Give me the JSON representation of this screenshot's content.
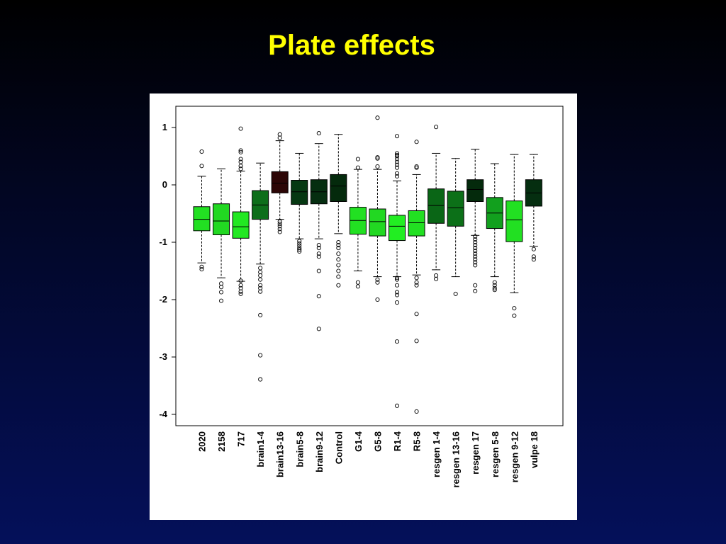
{
  "slide": {
    "title": "Plate effects"
  },
  "chart_data": {
    "type": "boxplot",
    "title": "",
    "xlabel": "",
    "ylabel": "",
    "ylim": [
      -4.2,
      1.35
    ],
    "yticks": [
      1,
      0,
      -1,
      -2,
      -3,
      -4
    ],
    "yticklabels": [
      "1",
      "0",
      "-1",
      "-2",
      "-3",
      "-4"
    ],
    "grid": false,
    "categories": [
      "2020",
      "2158",
      "717",
      "brain1-4",
      "brain13-16",
      "brain5-8",
      "brain9-12",
      "Control",
      "G1-4",
      "G5-8",
      "R1-4",
      "R5-8",
      "resgen 1-4",
      "resgen 13-16",
      "resgen 17",
      "resgen 5-8",
      "resgen 9-12",
      "vulpe 18"
    ],
    "boxes": [
      {
        "q1": -0.8,
        "median": -0.6,
        "q3": -0.38,
        "whisker_low": -1.36,
        "whisker_high": 0.15,
        "outliers": [
          0.58,
          0.33,
          -1.43,
          -1.47
        ],
        "color": "#22e022"
      },
      {
        "q1": -0.87,
        "median": -0.63,
        "q3": -0.33,
        "whisker_low": -1.62,
        "whisker_high": 0.28,
        "outliers": [
          -1.72,
          -1.78,
          -1.87,
          -2.02
        ],
        "color": "#22d822"
      },
      {
        "q1": -0.93,
        "median": -0.73,
        "q3": -0.47,
        "whisker_low": -1.68,
        "whisker_high": 0.24,
        "outliers": [
          0.98,
          0.6,
          0.57,
          0.45,
          0.4,
          0.33,
          0.28,
          -1.67,
          -1.75,
          -1.8,
          -1.86,
          -1.9
        ],
        "color": "#22e822"
      },
      {
        "q1": -0.6,
        "median": -0.35,
        "q3": -0.1,
        "whisker_low": -1.38,
        "whisker_high": 0.38,
        "outliers": [
          -1.45,
          -1.52,
          -1.58,
          -1.65,
          -1.75,
          -1.8,
          -1.86,
          -2.27,
          -2.97,
          -3.39
        ],
        "color": "#0d6e1a"
      },
      {
        "q1": -0.14,
        "median": 0.03,
        "q3": 0.23,
        "whisker_low": -0.6,
        "whisker_high": 0.77,
        "outliers": [
          0.88,
          0.82,
          -0.64,
          -0.68,
          -0.72,
          -0.77,
          -0.82
        ],
        "color": "#2c0606"
      },
      {
        "q1": -0.34,
        "median": -0.12,
        "q3": 0.08,
        "whisker_low": -0.94,
        "whisker_high": 0.55,
        "outliers": [
          -0.98,
          -1.02,
          -1.06,
          -1.1,
          -1.13,
          -1.16
        ],
        "color": "#063812"
      },
      {
        "q1": -0.33,
        "median": -0.12,
        "q3": 0.09,
        "whisker_low": -0.94,
        "whisker_high": 0.72,
        "outliers": [
          0.9,
          -1.05,
          -1.1,
          -1.2,
          -1.25,
          -1.5,
          -1.94,
          -2.51
        ],
        "color": "#052e10"
      },
      {
        "q1": -0.29,
        "median": -0.02,
        "q3": 0.18,
        "whisker_low": -0.85,
        "whisker_high": 0.88,
        "outliers": [
          -1.0,
          -1.05,
          -1.1,
          -1.2,
          -1.3,
          -1.4,
          -1.5,
          -1.6,
          -1.75
        ],
        "color": "#042a0c"
      },
      {
        "q1": -0.86,
        "median": -0.62,
        "q3": -0.39,
        "whisker_low": -1.5,
        "whisker_high": 0.27,
        "outliers": [
          0.45,
          0.3,
          -1.7,
          -1.77
        ],
        "color": "#22e022"
      },
      {
        "q1": -0.89,
        "median": -0.64,
        "q3": -0.42,
        "whisker_low": -1.6,
        "whisker_high": 0.27,
        "outliers": [
          1.17,
          0.48,
          0.46,
          0.32,
          -1.65,
          -1.7,
          -2.0
        ],
        "color": "#22d822"
      },
      {
        "q1": -0.97,
        "median": -0.72,
        "q3": -0.53,
        "whisker_low": -1.6,
        "whisker_high": 0.07,
        "outliers": [
          0.85,
          0.55,
          0.52,
          0.5,
          0.45,
          0.4,
          0.35,
          0.3,
          0.2,
          0.15,
          -1.62,
          -1.65,
          -1.75,
          -1.87,
          -1.92,
          -2.05,
          -2.73,
          -3.85
        ],
        "color": "#22ee22"
      },
      {
        "q1": -0.89,
        "median": -0.66,
        "q3": -0.45,
        "whisker_low": -1.57,
        "whisker_high": 0.18,
        "outliers": [
          0.75,
          0.32,
          0.3,
          -1.62,
          -1.7,
          -1.75,
          -2.25,
          -2.72,
          -3.95
        ],
        "color": "#22e022"
      },
      {
        "q1": -0.67,
        "median": -0.36,
        "q3": -0.07,
        "whisker_low": -1.48,
        "whisker_high": 0.55,
        "outliers": [
          1.01,
          -1.58,
          -1.64
        ],
        "color": "#0a6616"
      },
      {
        "q1": -0.72,
        "median": -0.4,
        "q3": -0.11,
        "whisker_low": -1.6,
        "whisker_high": 0.46,
        "outliers": [
          -1.9
        ],
        "color": "#0c7018"
      },
      {
        "q1": -0.29,
        "median": -0.08,
        "q3": 0.09,
        "whisker_low": -0.88,
        "whisker_high": 0.62,
        "outliers": [
          -0.9,
          -0.95,
          -1.0,
          -1.05,
          -1.1,
          -1.15,
          -1.2,
          -1.25,
          -1.3,
          -1.35,
          -1.4,
          -1.75,
          -1.85
        ],
        "color": "#042a0c"
      },
      {
        "q1": -0.76,
        "median": -0.49,
        "q3": -0.22,
        "whisker_low": -1.6,
        "whisker_high": 0.37,
        "outliers": [
          -1.7,
          -1.75,
          -1.8,
          -1.83
        ],
        "color": "#12a01e"
      },
      {
        "q1": -0.99,
        "median": -0.61,
        "q3": -0.28,
        "whisker_low": -1.88,
        "whisker_high": 0.53,
        "outliers": [
          -2.15,
          -2.28
        ],
        "color": "#22e022"
      },
      {
        "q1": -0.37,
        "median": -0.14,
        "q3": 0.09,
        "whisker_low": -1.07,
        "whisker_high": 0.53,
        "outliers": [
          -1.12,
          -1.25,
          -1.3
        ],
        "color": "#052e10"
      }
    ]
  }
}
